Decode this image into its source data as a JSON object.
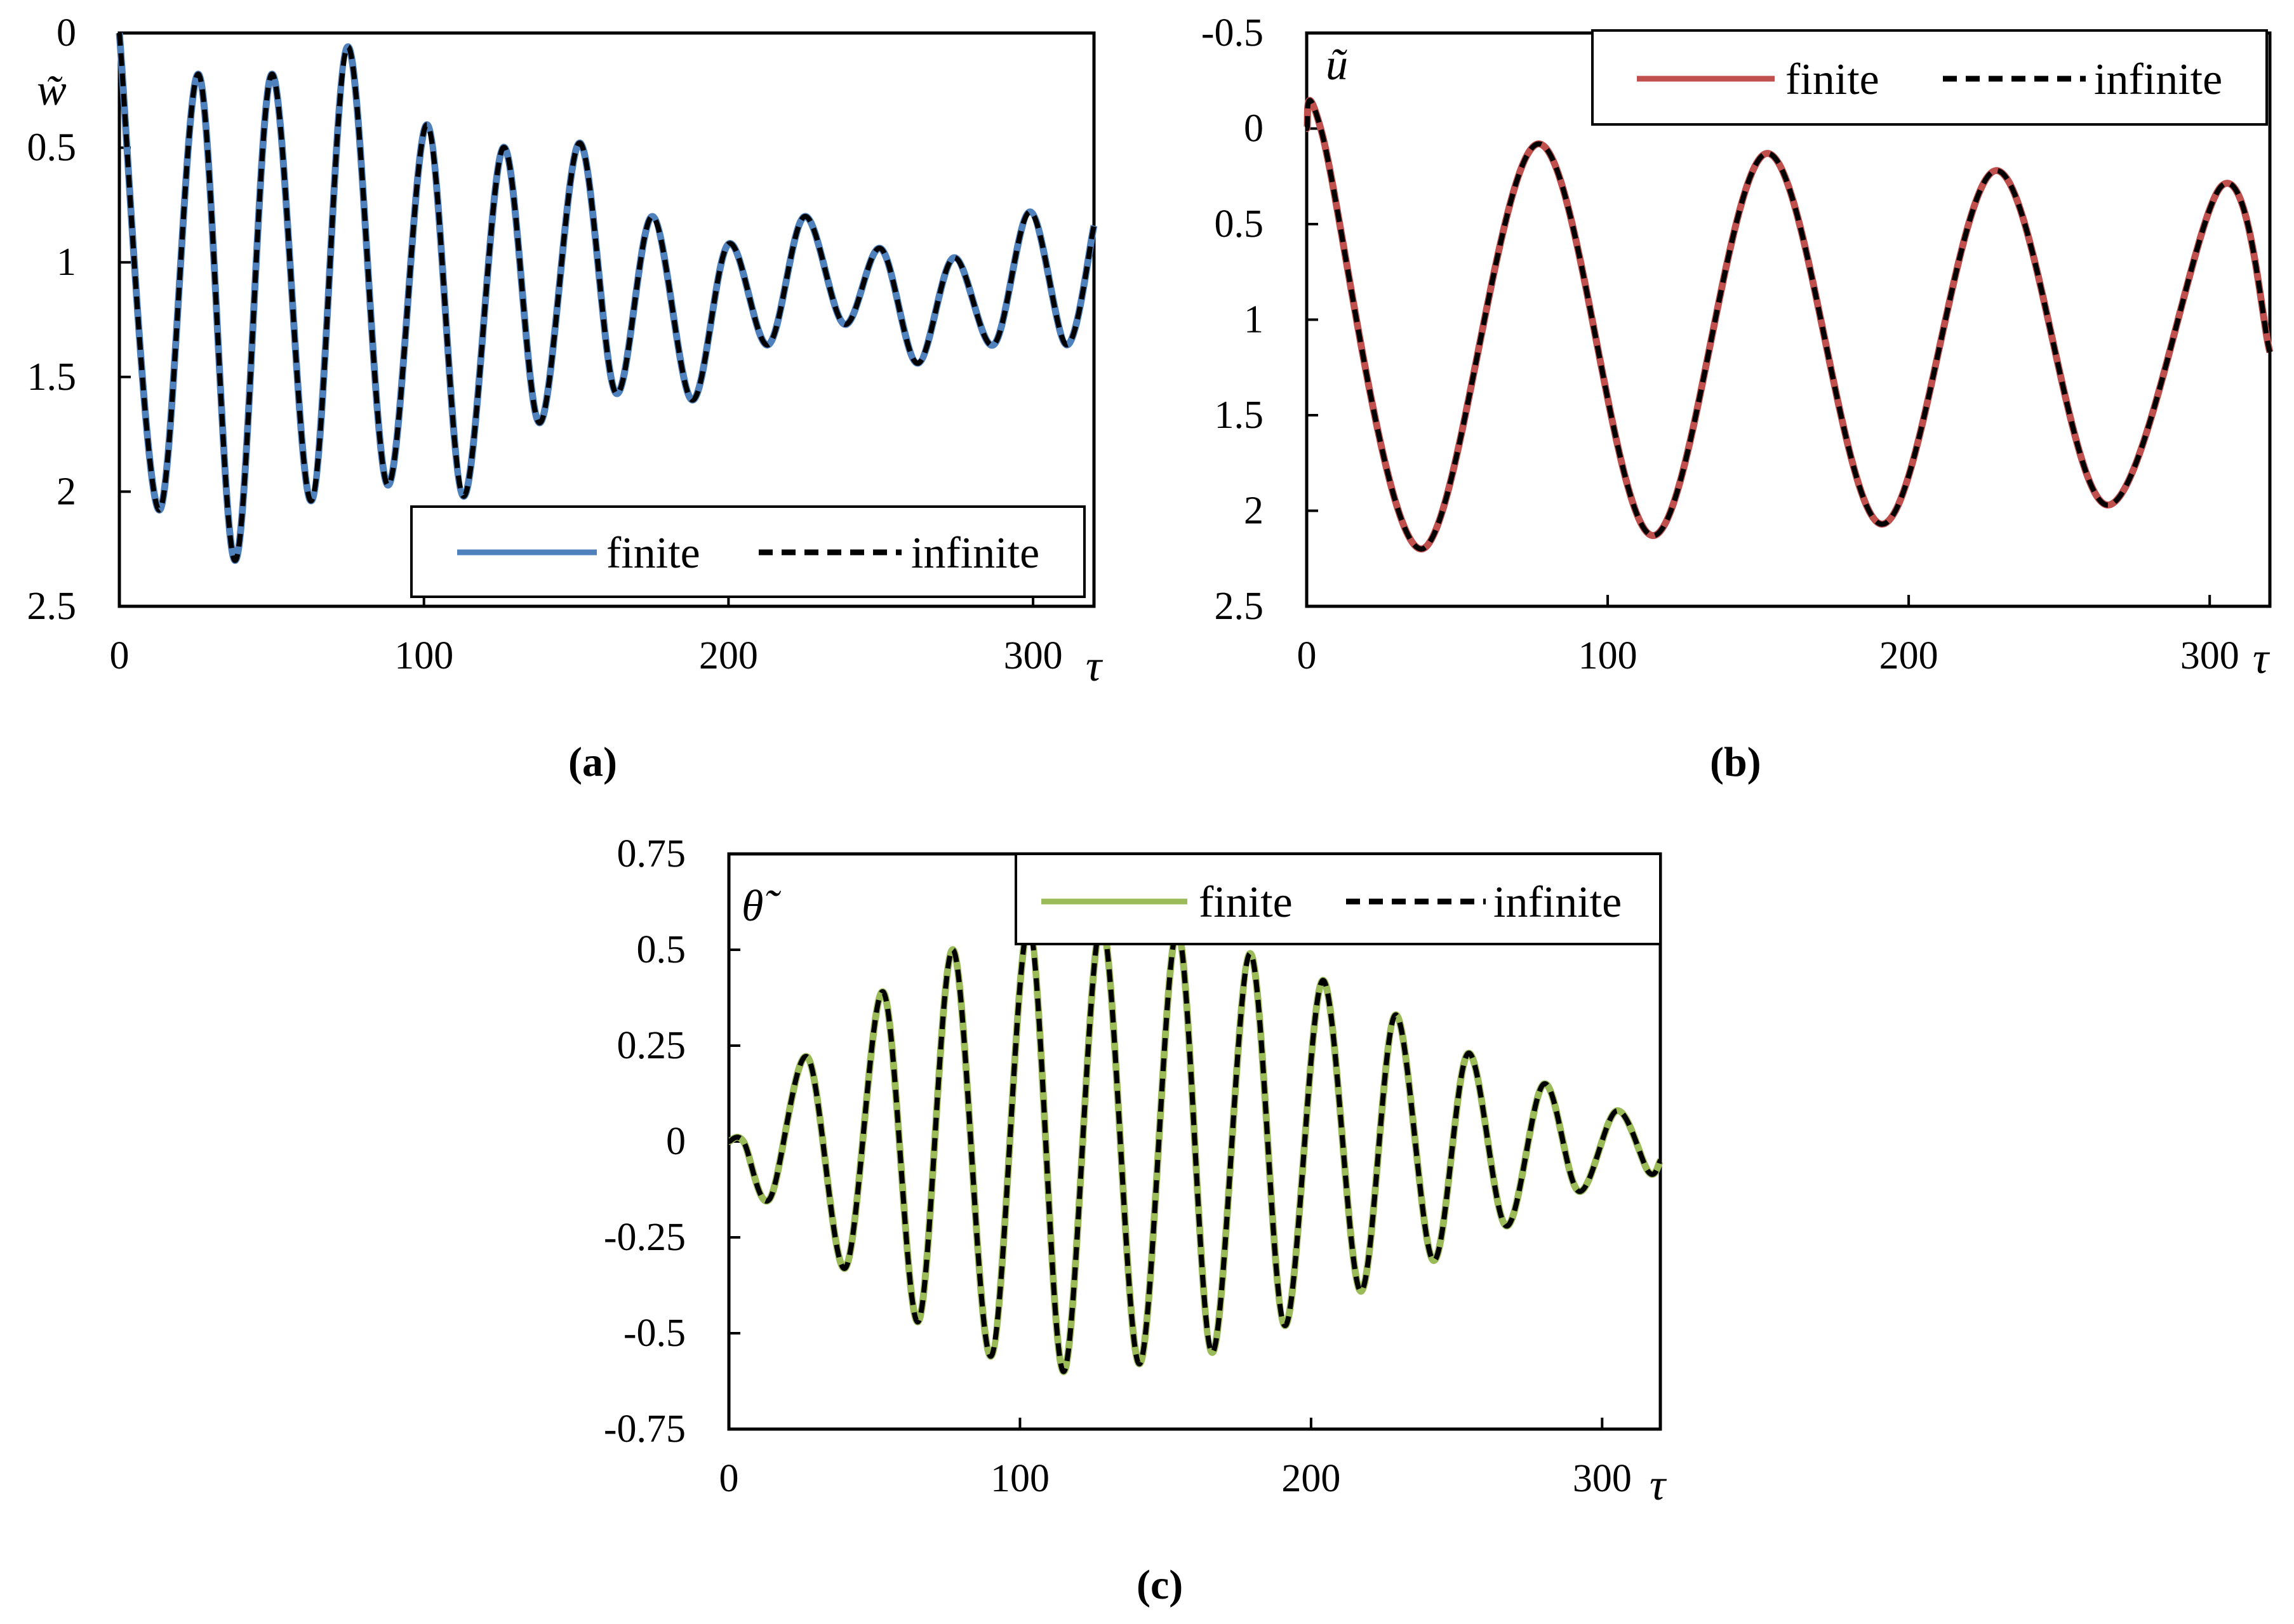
{
  "chart_data": [
    {
      "id": "a",
      "type": "line",
      "panel_label": "(a)",
      "ylabel": "w̃",
      "xlabel": "τ",
      "xlim": [
        0,
        320
      ],
      "ylim": [
        2.5,
        0
      ],
      "y_inverted": true,
      "xticks": [
        0,
        100,
        200,
        300
      ],
      "yticks": [
        0,
        0.5,
        1,
        1.5,
        2,
        2.5
      ],
      "ytick_labels": [
        "0",
        "0.5",
        "1",
        "1.5",
        "2",
        "2.5"
      ],
      "legend_position": "bottom-right",
      "series": [
        {
          "name": "finite",
          "style": "solid",
          "color": "#4f81bd"
        },
        {
          "name": "infinite",
          "style": "dashed",
          "color": "#000000"
        }
      ],
      "x": [
        0,
        13,
        26,
        38,
        50,
        63,
        75,
        88,
        101,
        113,
        126,
        138,
        151,
        163,
        175,
        188,
        200,
        213,
        225,
        238,
        250,
        262,
        274,
        287,
        299,
        311,
        320
      ],
      "values": [
        0,
        2.08,
        0.18,
        2.3,
        0.18,
        2.04,
        0.06,
        1.97,
        0.4,
        2.02,
        0.5,
        1.7,
        0.48,
        1.57,
        0.8,
        1.6,
        0.92,
        1.36,
        0.8,
        1.27,
        0.94,
        1.44,
        0.98,
        1.36,
        0.78,
        1.36,
        0.84
      ]
    },
    {
      "id": "b",
      "type": "line",
      "panel_label": "(b)",
      "ylabel": "ũ",
      "xlabel": "τ",
      "xlim": [
        0,
        320
      ],
      "ylim": [
        2.5,
        -0.5
      ],
      "y_inverted": true,
      "xticks": [
        0,
        100,
        200,
        300
      ],
      "yticks": [
        -0.5,
        0,
        0.5,
        1,
        1.5,
        2,
        2.5
      ],
      "ytick_labels": [
        "-0.5",
        "0",
        "0.5",
        "1",
        "1.5",
        "2",
        "2.5"
      ],
      "legend_position": "top-right",
      "series": [
        {
          "name": "finite",
          "style": "solid",
          "color": "#c0504d"
        },
        {
          "name": "infinite",
          "style": "dashed",
          "color": "#000000"
        }
      ],
      "x": [
        0,
        5,
        38,
        77,
        115,
        153,
        191,
        229,
        266,
        304,
        320
      ],
      "values": [
        0,
        0.02,
        2.2,
        0.08,
        2.13,
        0.13,
        2.07,
        0.22,
        1.97,
        0.3,
        1.17
      ]
    },
    {
      "id": "c",
      "type": "line",
      "panel_label": "(c)",
      "ylabel": "θ̃",
      "xlabel": "τ",
      "xlim": [
        0,
        320
      ],
      "ylim": [
        -0.75,
        0.75
      ],
      "y_inverted": false,
      "xticks": [
        0,
        100,
        200,
        300
      ],
      "yticks": [
        0.75,
        0.5,
        0.25,
        0,
        -0.25,
        -0.5,
        -0.75
      ],
      "ytick_labels": [
        "0.75",
        "0.5",
        "0.25",
        "0",
        "-0.25",
        "-0.5",
        "-0.75"
      ],
      "legend_position": "top-right",
      "series": [
        {
          "name": "finite",
          "style": "solid",
          "color": "#9bbb59"
        },
        {
          "name": "infinite",
          "style": "dashed",
          "color": "#000000"
        }
      ],
      "x": [
        0,
        5,
        14,
        27,
        40,
        53,
        65,
        77,
        90,
        103,
        115,
        128,
        141,
        154,
        166,
        179,
        191,
        204,
        217,
        229,
        242,
        254,
        267,
        280,
        292,
        305,
        316,
        320
      ],
      "values": [
        0,
        0,
        -0.15,
        0.22,
        -0.33,
        0.39,
        -0.47,
        0.5,
        -0.56,
        0.56,
        -0.6,
        0.57,
        -0.58,
        0.55,
        -0.55,
        0.49,
        -0.48,
        0.42,
        -0.39,
        0.33,
        -0.31,
        0.23,
        -0.22,
        0.15,
        -0.13,
        0.08,
        -0.08,
        -0.05
      ]
    }
  ]
}
